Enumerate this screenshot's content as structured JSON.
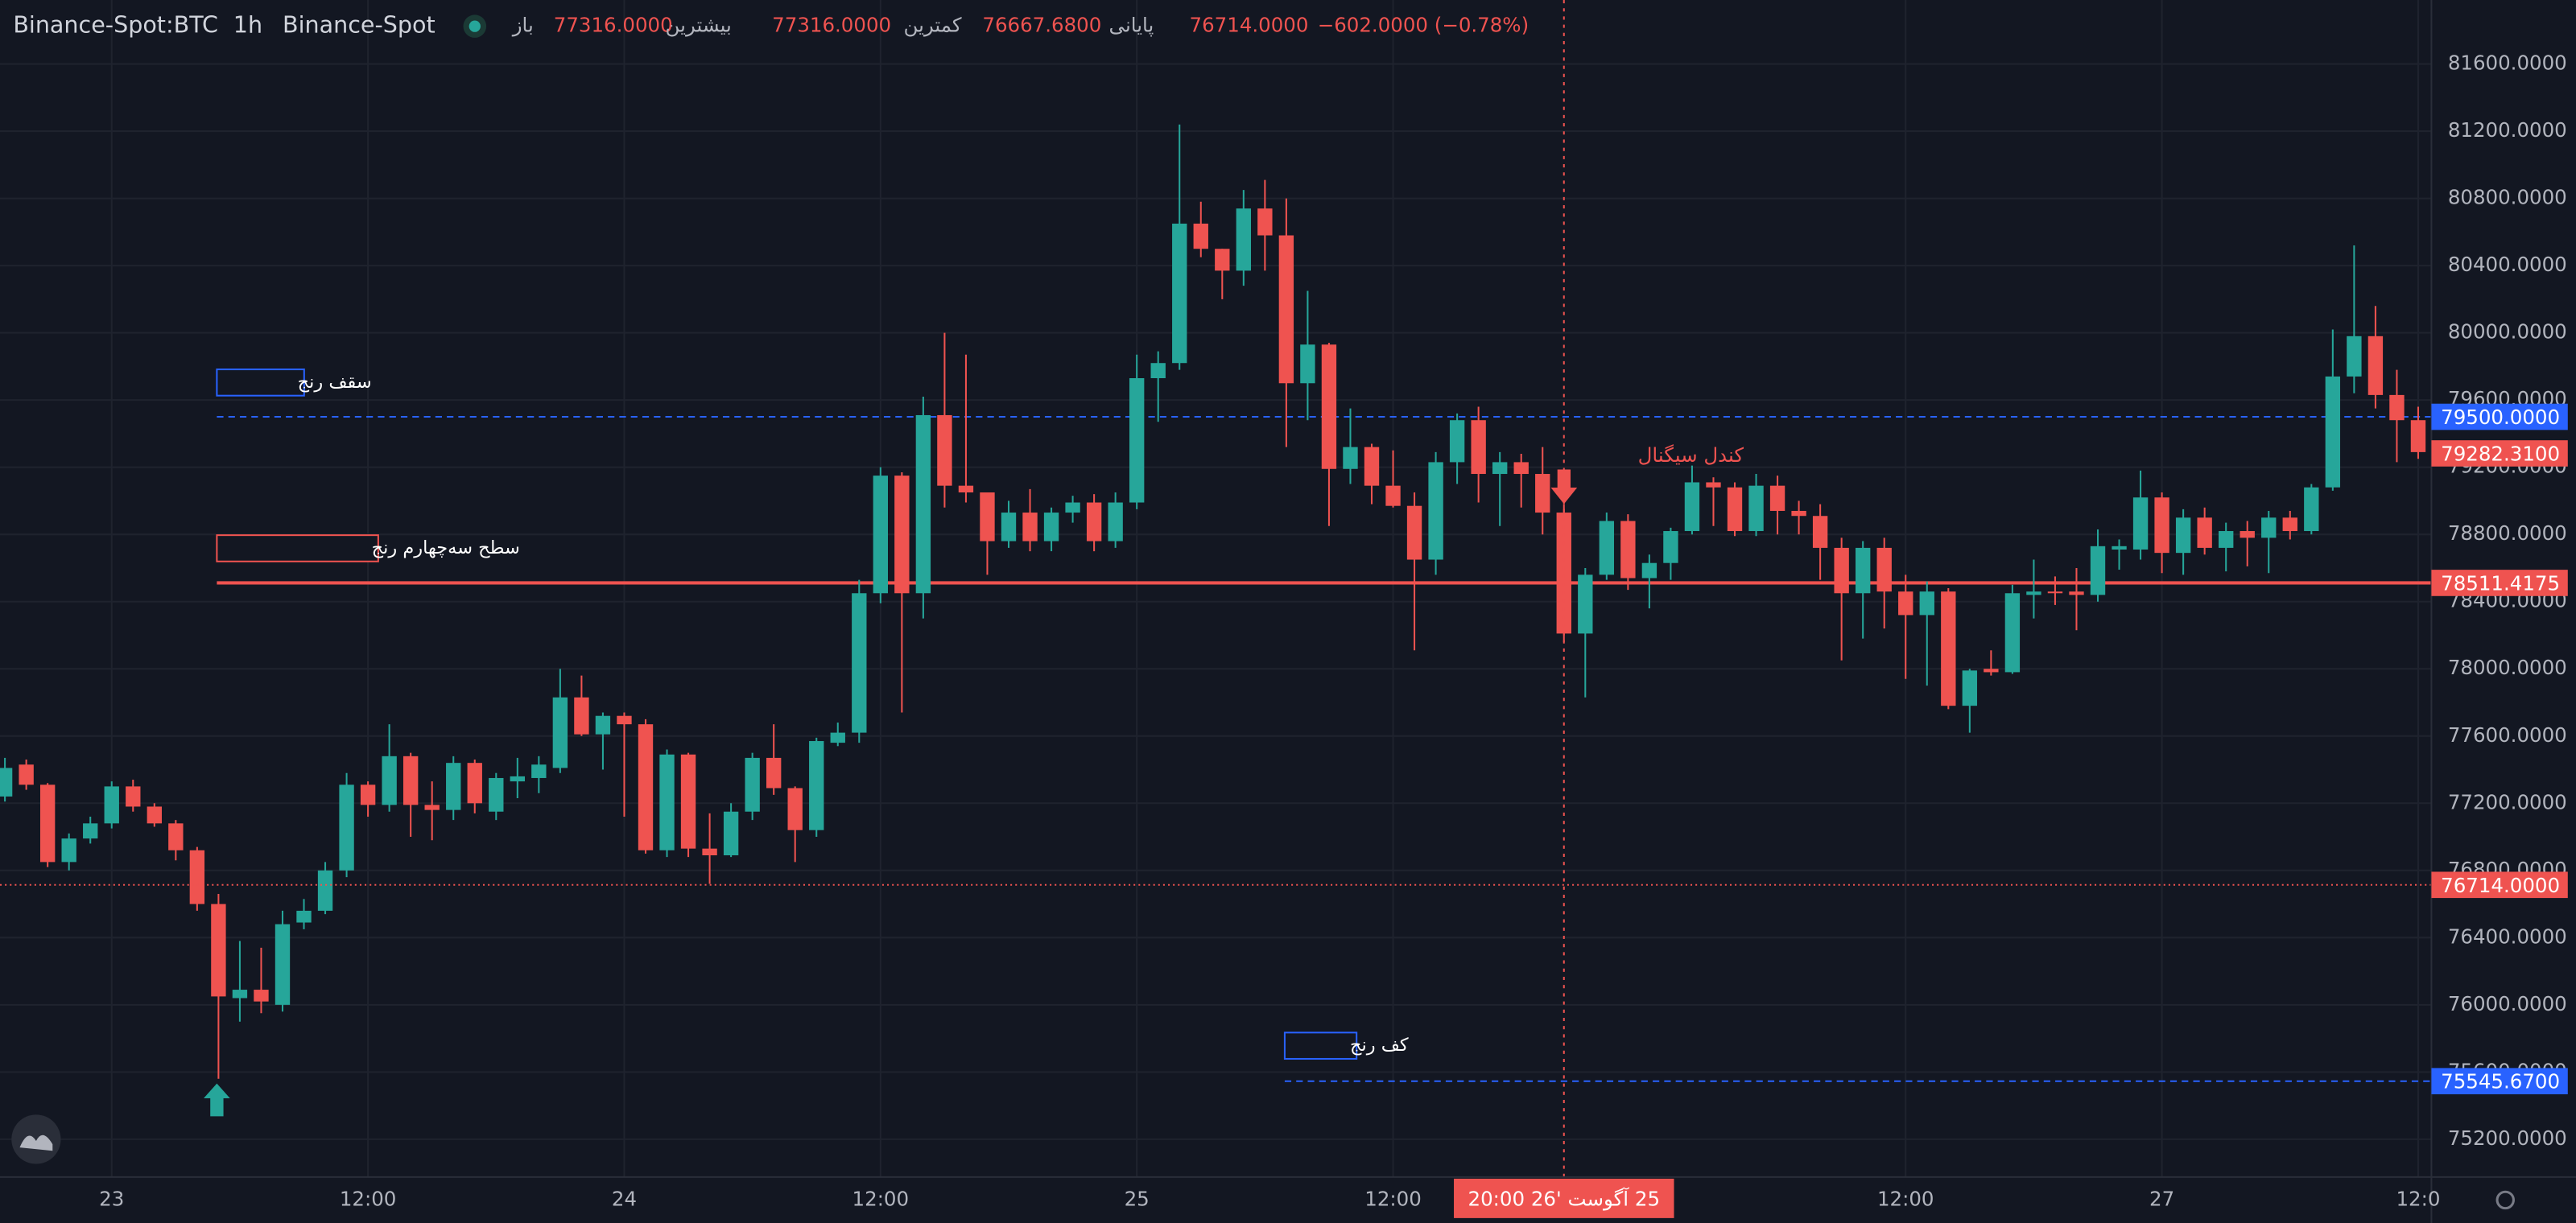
{
  "chart_data": {
    "type": "candlestick",
    "symbol": "Binance-Spot:BTC",
    "interval": "1h",
    "exchange": "Binance-Spot",
    "legend": [
      {
        "label": "باز",
        "value": "77316.0000"
      },
      {
        "label": "بیشترین",
        "value": "77316.0000"
      },
      {
        "label": "کمترین",
        "value": "76667.6800"
      },
      {
        "label": "پایانی",
        "value": "76714.0000"
      }
    ],
    "change": "−602.0000 (−0.78%)",
    "x": [
      -5,
      -4,
      -3,
      -2,
      -1,
      0,
      1,
      2,
      3,
      4,
      5,
      6,
      7,
      8,
      9,
      10,
      11,
      12,
      13,
      14,
      15,
      16,
      17,
      18,
      19,
      20,
      21,
      22,
      23,
      24,
      25,
      26,
      27,
      28,
      29,
      30,
      31,
      32,
      33,
      34,
      35,
      36,
      37,
      38,
      39,
      40,
      41,
      42,
      43,
      44,
      45,
      46,
      47,
      48,
      49,
      50,
      51,
      52,
      53,
      54,
      55,
      56,
      57,
      58,
      59,
      60,
      61,
      62,
      63,
      64,
      65,
      66,
      67,
      68,
      69,
      70,
      71,
      72,
      73,
      74,
      75,
      76,
      77,
      78,
      79,
      80,
      81,
      82,
      83,
      84,
      85,
      86,
      87,
      88,
      89,
      90,
      91,
      92,
      93,
      94,
      95,
      96,
      97,
      98,
      99,
      100,
      101,
      102,
      103,
      104,
      105,
      106,
      107,
      108
    ],
    "ohlc": [
      [
        77240,
        77470,
        77210,
        77410
      ],
      [
        77430,
        77460,
        77280,
        77310
      ],
      [
        77310,
        77320,
        76820,
        76850
      ],
      [
        76850,
        77020,
        76800,
        76990
      ],
      [
        76990,
        77120,
        76960,
        77080
      ],
      [
        77080,
        77330,
        77050,
        77300
      ],
      [
        77300,
        77340,
        77150,
        77180
      ],
      [
        77180,
        77200,
        77060,
        77080
      ],
      [
        77080,
        77100,
        76860,
        76920
      ],
      [
        76920,
        76940,
        76560,
        76600
      ],
      [
        76600,
        76660,
        75560,
        76050
      ],
      [
        76040,
        76380,
        75900,
        76090
      ],
      [
        76090,
        76340,
        75950,
        76020
      ],
      [
        76000,
        76560,
        75960,
        76480
      ],
      [
        76490,
        76630,
        76450,
        76560
      ],
      [
        76560,
        76850,
        76540,
        76800
      ],
      [
        76800,
        77380,
        76760,
        77310
      ],
      [
        77310,
        77330,
        77120,
        77190
      ],
      [
        77190,
        77670,
        77150,
        77480
      ],
      [
        77480,
        77500,
        77000,
        77190
      ],
      [
        77190,
        77330,
        76980,
        77160
      ],
      [
        77160,
        77480,
        77100,
        77440
      ],
      [
        77440,
        77460,
        77140,
        77200
      ],
      [
        77150,
        77380,
        77100,
        77350
      ],
      [
        77330,
        77470,
        77230,
        77360
      ],
      [
        77350,
        77480,
        77260,
        77430
      ],
      [
        77410,
        78000,
        77380,
        77830
      ],
      [
        77830,
        77960,
        77600,
        77610
      ],
      [
        77610,
        77740,
        77400,
        77720
      ],
      [
        77720,
        77740,
        77120,
        77670
      ],
      [
        77670,
        77700,
        76900,
        76920
      ],
      [
        76920,
        77520,
        76880,
        77490
      ],
      [
        77490,
        77500,
        76880,
        76930
      ],
      [
        76930,
        77140,
        76720,
        76890
      ],
      [
        76890,
        77200,
        76880,
        77150
      ],
      [
        77150,
        77500,
        77100,
        77470
      ],
      [
        77470,
        77670,
        77250,
        77290
      ],
      [
        77290,
        77300,
        76850,
        77040
      ],
      [
        77040,
        77590,
        77000,
        77570
      ],
      [
        77560,
        77680,
        77540,
        77620
      ],
      [
        77620,
        78530,
        77560,
        78450
      ],
      [
        78450,
        79200,
        78390,
        79150
      ],
      [
        79150,
        79170,
        77740,
        78450
      ],
      [
        78450,
        79620,
        78300,
        79510
      ],
      [
        79510,
        80000,
        78960,
        79090
      ],
      [
        79090,
        79870,
        78990,
        79050
      ],
      [
        79050,
        79050,
        78560,
        78760
      ],
      [
        78760,
        79000,
        78720,
        78930
      ],
      [
        78930,
        79070,
        78700,
        78760
      ],
      [
        78760,
        78960,
        78700,
        78930
      ],
      [
        78930,
        79030,
        78870,
        78990
      ],
      [
        78990,
        79040,
        78700,
        78760
      ],
      [
        78760,
        79050,
        78720,
        78990
      ],
      [
        78990,
        79870,
        78950,
        79730
      ],
      [
        79730,
        79890,
        79470,
        79820
      ],
      [
        79820,
        81240,
        79780,
        80650
      ],
      [
        80650,
        80780,
        80450,
        80500
      ],
      [
        80500,
        80500,
        80200,
        80370
      ],
      [
        80370,
        80850,
        80280,
        80740
      ],
      [
        80740,
        80910,
        80370,
        80580
      ],
      [
        80580,
        80800,
        79320,
        79700
      ],
      [
        79700,
        80250,
        79480,
        79930
      ],
      [
        79930,
        79940,
        78850,
        79190
      ],
      [
        79190,
        79550,
        79100,
        79320
      ],
      [
        79320,
        79340,
        78980,
        79090
      ],
      [
        79090,
        79300,
        78960,
        78970
      ],
      [
        78970,
        79050,
        78110,
        78650
      ],
      [
        78650,
        79290,
        78560,
        79230
      ],
      [
        79230,
        79520,
        79100,
        79480
      ],
      [
        79480,
        79560,
        78990,
        79160
      ],
      [
        79160,
        79290,
        78850,
        79230
      ],
      [
        79230,
        79280,
        78960,
        79160
      ],
      [
        79160,
        79320,
        78800,
        78930
      ],
      [
        78930,
        78980,
        78160,
        78210
      ],
      [
        78210,
        78600,
        77830,
        78560
      ],
      [
        78560,
        78930,
        78530,
        78880
      ],
      [
        78880,
        78920,
        78470,
        78540
      ],
      [
        78540,
        78680,
        78360,
        78630
      ],
      [
        78630,
        78840,
        78530,
        78820
      ],
      [
        78820,
        79210,
        78800,
        79110
      ],
      [
        79110,
        79140,
        78850,
        79080
      ],
      [
        79080,
        79110,
        78790,
        78820
      ],
      [
        78820,
        79160,
        78790,
        79090
      ],
      [
        79090,
        79150,
        78800,
        78940
      ],
      [
        78940,
        79000,
        78800,
        78910
      ],
      [
        78910,
        78980,
        78530,
        78720
      ],
      [
        78720,
        78780,
        78050,
        78450
      ],
      [
        78450,
        78760,
        78180,
        78720
      ],
      [
        78720,
        78780,
        78240,
        78460
      ],
      [
        78460,
        78560,
        77940,
        78320
      ],
      [
        78320,
        78520,
        77900,
        78460
      ],
      [
        78460,
        78480,
        77760,
        77780
      ],
      [
        77780,
        78000,
        77620,
        77990
      ],
      [
        78000,
        78110,
        77960,
        77980
      ],
      [
        77980,
        78500,
        77970,
        78450
      ],
      [
        78440,
        78650,
        78300,
        78460
      ],
      [
        78460,
        78550,
        78380,
        78450
      ],
      [
        78460,
        78600,
        78230,
        78440
      ],
      [
        78440,
        78830,
        78400,
        78730
      ],
      [
        78710,
        78770,
        78590,
        78730
      ],
      [
        78710,
        79180,
        78650,
        79020
      ],
      [
        79020,
        79050,
        78570,
        78690
      ],
      [
        78690,
        78950,
        78560,
        78900
      ],
      [
        78900,
        78960,
        78680,
        78720
      ],
      [
        78720,
        78870,
        78580,
        78820
      ],
      [
        78820,
        78880,
        78610,
        78780
      ],
      [
        78780,
        78940,
        78570,
        78900
      ],
      [
        78900,
        78940,
        78770,
        78820
      ],
      [
        78820,
        79100,
        78800,
        79080
      ],
      [
        79080,
        80020,
        79060,
        79740
      ],
      [
        79740,
        80520,
        79640,
        79980
      ],
      [
        79980,
        80160,
        79550,
        79630
      ],
      [
        79630,
        79780,
        79230,
        79480
      ],
      [
        79480,
        79560,
        79250,
        79290
      ]
    ],
    "up_color": "#26a69a",
    "down_color": "#ef5350",
    "xlim": [
      -5.23,
      108.62
    ],
    "xticks": [
      {
        "value": 0,
        "label": "23"
      },
      {
        "value": 12,
        "label": "12:00"
      },
      {
        "value": 24,
        "label": "24"
      },
      {
        "value": 36,
        "label": "12:00"
      },
      {
        "value": 48,
        "label": "25"
      },
      {
        "value": 60,
        "label": "12:00"
      },
      {
        "value": 84,
        "label": "12:00"
      },
      {
        "value": 96,
        "label": "27"
      },
      {
        "value": 108,
        "label": "12:0"
      }
    ],
    "ylim": [
      74975,
      81981
    ],
    "yticks": [
      {
        "value": 75200,
        "label": "75200.0000"
      },
      {
        "value": 75600,
        "label": "75600.0000"
      },
      {
        "value": 76000,
        "label": "76000.0000"
      },
      {
        "value": 76400,
        "label": "76400.0000"
      },
      {
        "value": 76800,
        "label": "76800.0000"
      },
      {
        "value": 77200,
        "label": "77200.0000"
      },
      {
        "value": 77600,
        "label": "77600.0000"
      },
      {
        "value": 78000,
        "label": "78000.0000"
      },
      {
        "value": 78400,
        "label": "78400.0000"
      },
      {
        "value": 78800,
        "label": "78800.0000"
      },
      {
        "value": 79200,
        "label": "79200.0000"
      },
      {
        "value": 79600,
        "label": "79600.0000"
      },
      {
        "value": 80000,
        "label": "80000.0000"
      },
      {
        "value": 80400,
        "label": "80400.0000"
      },
      {
        "value": 80800,
        "label": "80800.0000"
      },
      {
        "value": 81200,
        "label": "81200.0000"
      },
      {
        "value": 81600,
        "label": "81600.0000"
      }
    ],
    "grid": true,
    "levels": [
      {
        "name": "سقف رنج",
        "value": 79500,
        "label": "79500.0000",
        "color": "#2962ff",
        "style": "dashed"
      },
      {
        "name": "سطح سه‌چهارم رنج",
        "value": 78511.4175,
        "label": "78511.4175",
        "color": "#ef5350",
        "style": "solid"
      },
      {
        "name": "کف رنج",
        "value": 75545.67,
        "label": "75545.6700",
        "color": "#2962ff",
        "style": "dashed"
      }
    ],
    "current_price": {
      "value": 76714,
      "label": "76714.0000",
      "color": "#ef5350"
    },
    "last_price": {
      "value": 79282.31,
      "label": "79282.3100",
      "color": "#ef5350"
    },
    "crosshair": {
      "x": 68,
      "label": "25 آگوست '26  20:00"
    },
    "annotation": {
      "x": 68,
      "text": "کندل سیگنال"
    }
  }
}
